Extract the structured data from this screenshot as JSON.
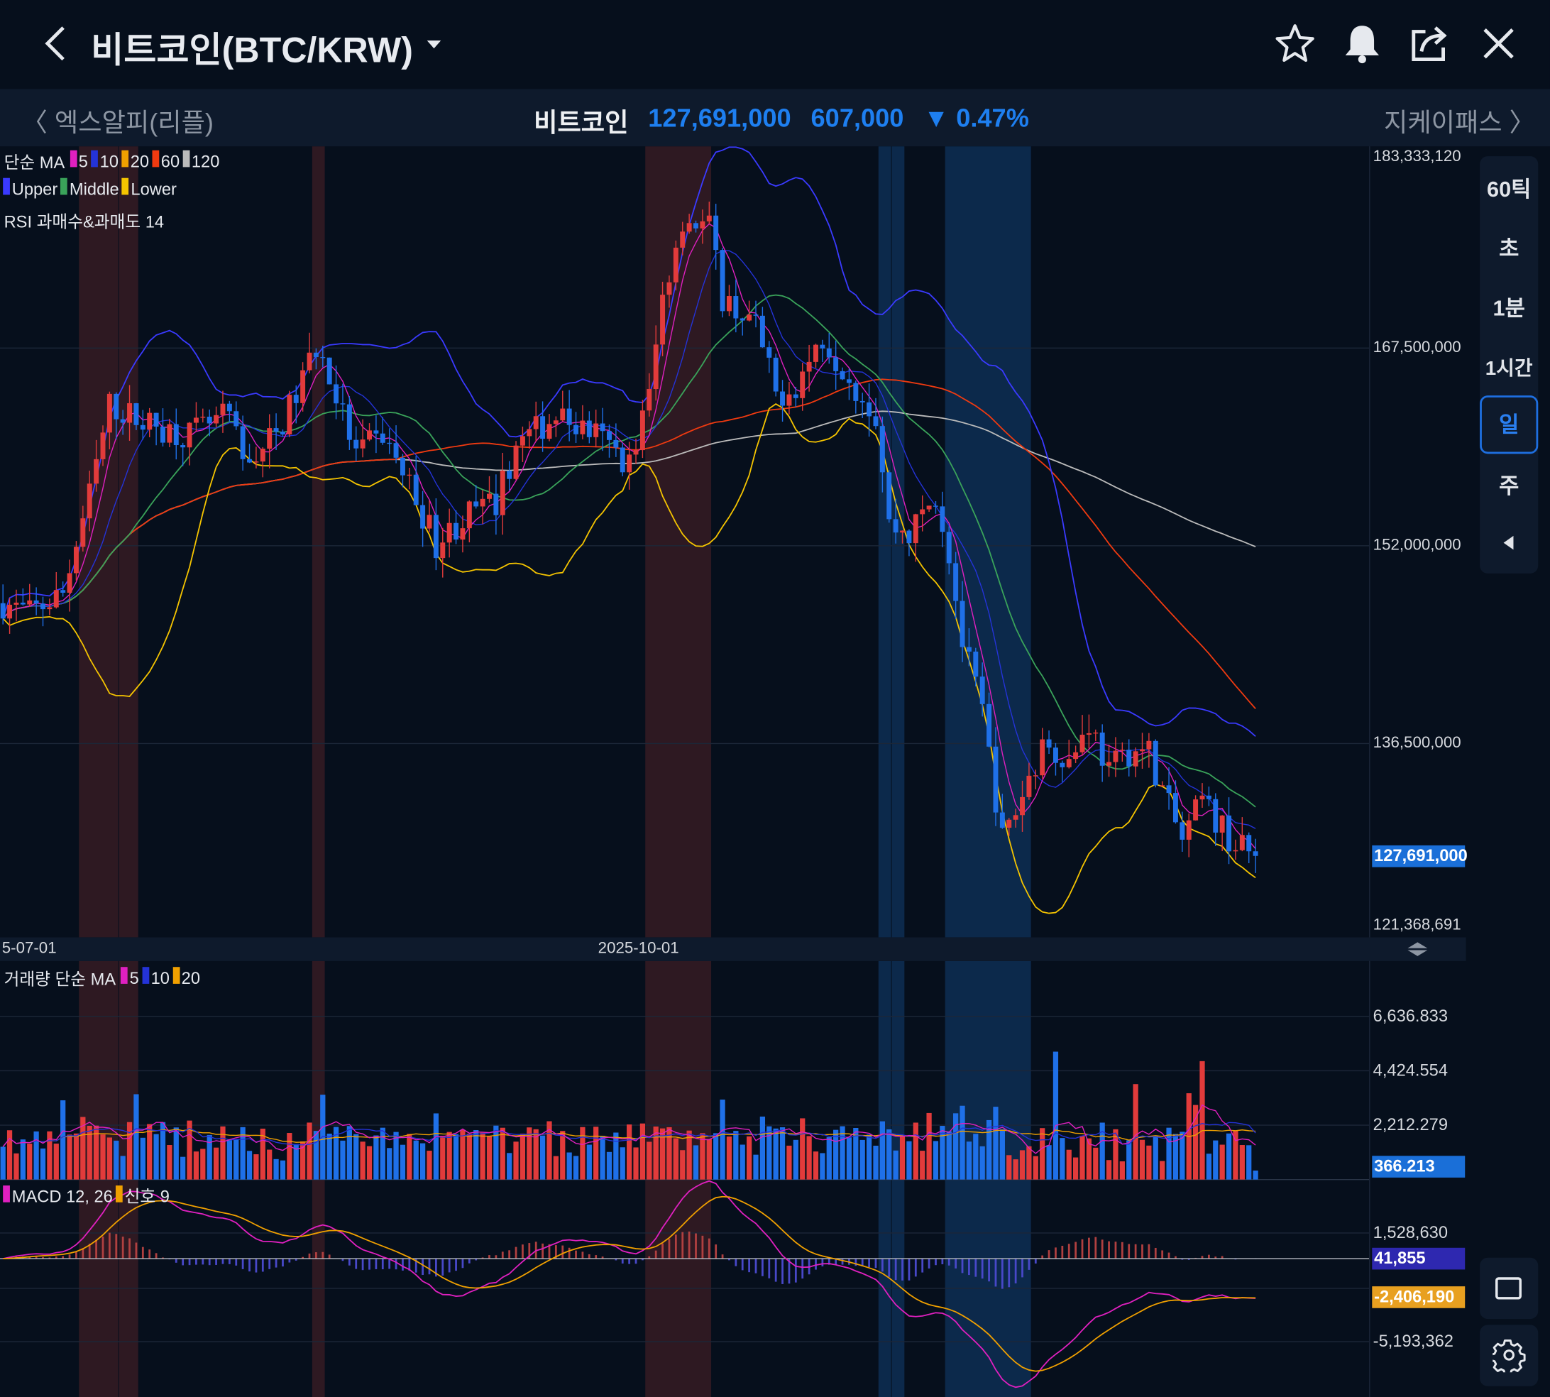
{
  "header": {
    "title": "비트코인(BTC/KRW)",
    "icons": [
      "back-icon",
      "dropdown-caret-icon",
      "star-icon",
      "bell-icon",
      "share-icon",
      "close-icon"
    ]
  },
  "ticker": {
    "prev": "엑스알피(리플)",
    "name": "비트코인",
    "price": "127,691,000",
    "change": "607,000",
    "direction": "▼",
    "percent": "0.47%",
    "next": "지케이패스",
    "color": "#1e7ff0"
  },
  "legends": {
    "ma": {
      "label": "단순 MA",
      "items": [
        {
          "t": "5",
          "c": "#e020c0"
        },
        {
          "t": "10",
          "c": "#2433d8"
        },
        {
          "t": "20",
          "c": "#f0a000"
        },
        {
          "t": "60",
          "c": "#f03a10"
        },
        {
          "t": "120",
          "c": "#bbbbbb"
        }
      ]
    },
    "bb": {
      "items": [
        {
          "t": "Upper",
          "c": "#3a3aff"
        },
        {
          "t": "Middle",
          "c": "#3aa35a"
        },
        {
          "t": "Lower",
          "c": "#f5c400"
        }
      ]
    },
    "rsi": "RSI 과매수&과매도 14",
    "vol": {
      "label": "거래량 단순 MA",
      "items": [
        {
          "t": "5",
          "c": "#e020c0"
        },
        {
          "t": "10",
          "c": "#2433d8"
        },
        {
          "t": "20",
          "c": "#f0a000"
        }
      ]
    },
    "macd": {
      "items": [
        {
          "t": "MACD 12, 26",
          "c": "#e020c0"
        },
        {
          "t": "신호 9",
          "c": "#f0a000"
        }
      ]
    }
  },
  "price_axis": [
    "183,333,120",
    "167,500,000",
    "152,000,000",
    "136,500,000",
    "121,368,691"
  ],
  "price_tag": "127,691,000",
  "date_axis": [
    "5-07-01",
    "2025-10-01"
  ],
  "volume_axis": [
    "6,636.833",
    "4,424.554",
    "2,212.279"
  ],
  "volume_tag": "366.213",
  "macd_axis": [
    "1,528,630",
    "-5,193,362"
  ],
  "macd_tag": "41,855",
  "signal_tag": "-2,406,190",
  "sidebar": {
    "items": [
      "60틱",
      "초",
      "1분",
      "1시간",
      "일",
      "주"
    ],
    "selected": "일"
  },
  "chart_data": {
    "type": "candlestick",
    "price_range": [
      121368691,
      183333120
    ],
    "volume_range": [
      0,
      6636.833
    ],
    "macd_range": [
      -5193362,
      1528630
    ],
    "close_anchors_million": [
      [
        0,
        147.5
      ],
      [
        4,
        146.7
      ],
      [
        9,
        148.3
      ],
      [
        13,
        156.0
      ],
      [
        16,
        163.0
      ],
      [
        22,
        161.5
      ],
      [
        28,
        160.7
      ],
      [
        34,
        162.2
      ],
      [
        36,
        158.4
      ],
      [
        41,
        160.7
      ],
      [
        44,
        163.8
      ],
      [
        47,
        167.7
      ],
      [
        50,
        163.8
      ],
      [
        53,
        159.1
      ],
      [
        57,
        160.7
      ],
      [
        61,
        156.8
      ],
      [
        65,
        152.2
      ],
      [
        70,
        154.5
      ],
      [
        74,
        155.3
      ],
      [
        77,
        159.9
      ],
      [
        83,
        162.2
      ],
      [
        89,
        160.7
      ],
      [
        94,
        158.4
      ],
      [
        97,
        163.8
      ],
      [
        99,
        171.5
      ],
      [
        102,
        177.7
      ],
      [
        106,
        177.0
      ],
      [
        108,
        171.5
      ],
      [
        113,
        169.2
      ],
      [
        116,
        163.8
      ],
      [
        119,
        164.6
      ],
      [
        123,
        168.4
      ],
      [
        127,
        165.3
      ],
      [
        131,
        162.2
      ],
      [
        133,
        153.7
      ],
      [
        136,
        152.9
      ],
      [
        140,
        156.0
      ],
      [
        142,
        151.4
      ],
      [
        144,
        144.4
      ],
      [
        147,
        139.0
      ],
      [
        150,
        128.9
      ],
      [
        152,
        131.2
      ],
      [
        155,
        135.1
      ],
      [
        157,
        136.7
      ],
      [
        160,
        135.1
      ],
      [
        163,
        138.2
      ],
      [
        166,
        134.3
      ],
      [
        169,
        135.9
      ],
      [
        172,
        135.9
      ],
      [
        174,
        132.8
      ],
      [
        177,
        128.9
      ],
      [
        180,
        132.0
      ],
      [
        182,
        130.5
      ],
      [
        185,
        128.5
      ],
      [
        188,
        127.69
      ]
    ],
    "rsi_overbought_days": [
      [
        12,
        17
      ],
      [
        18,
        20
      ],
      [
        47,
        48
      ],
      [
        97,
        106
      ]
    ],
    "rsi_oversold_days": [
      [
        132,
        133
      ],
      [
        134,
        135
      ],
      [
        142,
        154
      ]
    ],
    "up_color": "#e23b3b",
    "down_color": "#1f70e8"
  }
}
